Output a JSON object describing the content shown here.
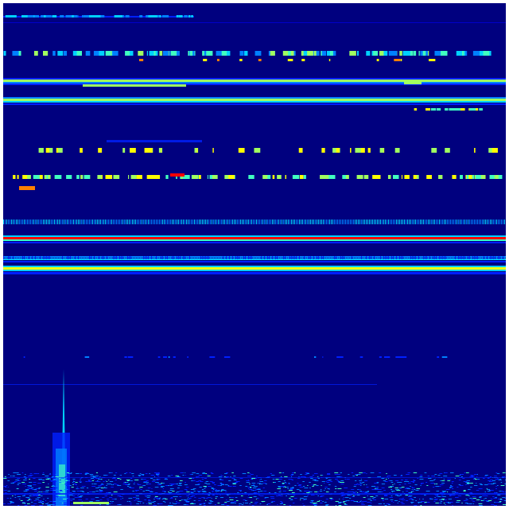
{
  "colors": {
    "background": "#00007f",
    "frame": "#ffffff",
    "palette": [
      "#0000c8",
      "#0020ff",
      "#0080ff",
      "#00d0ff",
      "#40ffc0",
      "#a0ff60",
      "#ffff00",
      "#ff8000",
      "#ff0000"
    ]
  }
}
